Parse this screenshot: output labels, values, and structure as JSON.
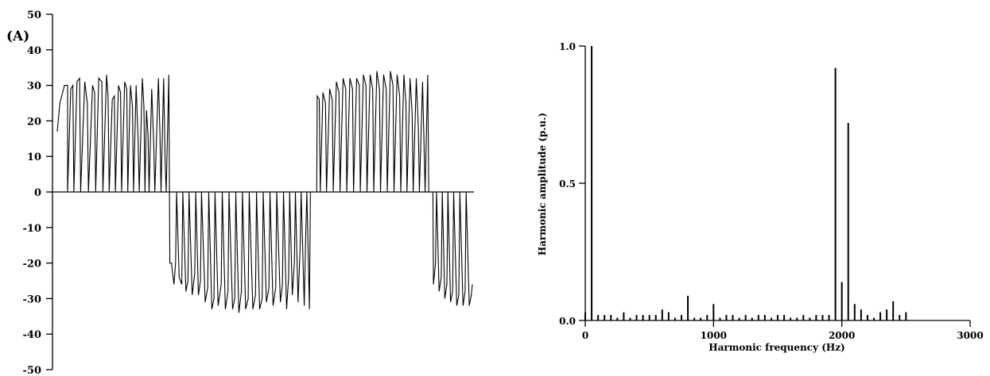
{
  "chart_data": [
    {
      "type": "line",
      "unit_label": "(A)",
      "ylim": [
        -50,
        50
      ],
      "yticks": [
        50,
        40,
        30,
        20,
        10,
        0,
        -10,
        -20,
        -30,
        -40,
        -50
      ],
      "ytick_labels": [
        "50",
        "40",
        "30",
        "20",
        "10",
        "0",
        "-10",
        "-20",
        "-30",
        "-40",
        "-50"
      ],
      "series": [
        {
          "values": [
            [
              0,
              17
            ],
            [
              0.05,
              25
            ],
            [
              0.14,
              30
            ],
            [
              0.2,
              30
            ],
            [
              0.2,
              0
            ],
            [
              0.26,
              29
            ],
            [
              0.3,
              30
            ],
            [
              0.32,
              0
            ],
            [
              0.38,
              31
            ],
            [
              0.43,
              32
            ],
            [
              0.45,
              0
            ],
            [
              0.53,
              31
            ],
            [
              0.58,
              25
            ],
            [
              0.6,
              0
            ],
            [
              0.68,
              30
            ],
            [
              0.72,
              28
            ],
            [
              0.74,
              0
            ],
            [
              0.8,
              32
            ],
            [
              0.86,
              31
            ],
            [
              0.88,
              0
            ],
            [
              0.95,
              33
            ],
            [
              0.98,
              27
            ],
            [
              1.0,
              0
            ],
            [
              1.06,
              26
            ],
            [
              1.1,
              27
            ],
            [
              1.12,
              0
            ],
            [
              1.18,
              30
            ],
            [
              1.22,
              28
            ],
            [
              1.24,
              0
            ],
            [
              1.3,
              31
            ],
            [
              1.34,
              29
            ],
            [
              1.36,
              0
            ],
            [
              1.41,
              30
            ],
            [
              1.45,
              24
            ],
            [
              1.47,
              0
            ],
            [
              1.52,
              30
            ],
            [
              1.56,
              14
            ],
            [
              1.58,
              0
            ],
            [
              1.64,
              32
            ],
            [
              1.67,
              24
            ],
            [
              1.69,
              0
            ],
            [
              1.72,
              23
            ],
            [
              1.75,
              16
            ],
            [
              1.77,
              0
            ],
            [
              1.82,
              29
            ],
            [
              1.86,
              13
            ],
            [
              1.88,
              0
            ],
            [
              1.95,
              32
            ],
            [
              1.98,
              16
            ],
            [
              2.0,
              0
            ],
            [
              2.05,
              32
            ],
            [
              2.08,
              8
            ],
            [
              2.1,
              0
            ],
            [
              2.15,
              33
            ],
            [
              2.17,
              -20
            ],
            [
              2.2,
              -20
            ],
            [
              2.25,
              -26
            ],
            [
              2.28,
              -20
            ],
            [
              2.3,
              0
            ],
            [
              2.35,
              -24
            ],
            [
              2.4,
              -26
            ],
            [
              2.42,
              0
            ],
            [
              2.48,
              -28
            ],
            [
              2.52,
              -25
            ],
            [
              2.54,
              0
            ],
            [
              2.6,
              -29
            ],
            [
              2.65,
              -23
            ],
            [
              2.67,
              0
            ],
            [
              2.72,
              -29
            ],
            [
              2.76,
              -25
            ],
            [
              2.78,
              0
            ],
            [
              2.85,
              -31
            ],
            [
              2.9,
              -27
            ],
            [
              2.92,
              0
            ],
            [
              2.98,
              -33
            ],
            [
              3.02,
              -30
            ],
            [
              3.04,
              0
            ],
            [
              3.1,
              -32
            ],
            [
              3.16,
              -26
            ],
            [
              3.18,
              0
            ],
            [
              3.24,
              -33
            ],
            [
              3.29,
              -28
            ],
            [
              3.31,
              0
            ],
            [
              3.38,
              -33
            ],
            [
              3.42,
              -30
            ],
            [
              3.44,
              0
            ],
            [
              3.5,
              -34
            ],
            [
              3.55,
              -28
            ],
            [
              3.57,
              0
            ],
            [
              3.63,
              -33
            ],
            [
              3.68,
              -30
            ],
            [
              3.7,
              0
            ],
            [
              3.77,
              -33
            ],
            [
              3.82,
              -29
            ],
            [
              3.84,
              0
            ],
            [
              3.9,
              -33
            ],
            [
              3.95,
              -30
            ],
            [
              3.97,
              0
            ],
            [
              4.03,
              -31
            ],
            [
              4.08,
              -27
            ],
            [
              4.1,
              0
            ],
            [
              4.16,
              -32
            ],
            [
              4.21,
              -27
            ],
            [
              4.23,
              0
            ],
            [
              4.3,
              -31
            ],
            [
              4.34,
              -26
            ],
            [
              4.36,
              0
            ],
            [
              4.42,
              -33
            ],
            [
              4.46,
              -24
            ],
            [
              4.48,
              0
            ],
            [
              4.53,
              -29
            ],
            [
              4.57,
              -20
            ],
            [
              4.59,
              0
            ],
            [
              4.64,
              -31
            ],
            [
              4.68,
              -16
            ],
            [
              4.7,
              0
            ],
            [
              4.76,
              -32
            ],
            [
              4.79,
              -12
            ],
            [
              4.81,
              0
            ],
            [
              4.86,
              -33
            ],
            [
              4.88,
              0
            ],
            [
              5.0,
              0
            ],
            [
              5.01,
              27
            ],
            [
              5.05,
              26
            ],
            [
              5.07,
              0
            ],
            [
              5.12,
              28
            ],
            [
              5.17,
              25
            ],
            [
              5.19,
              0
            ],
            [
              5.25,
              29
            ],
            [
              5.3,
              26
            ],
            [
              5.32,
              0
            ],
            [
              5.38,
              31
            ],
            [
              5.43,
              28
            ],
            [
              5.45,
              0
            ],
            [
              5.51,
              32
            ],
            [
              5.56,
              29
            ],
            [
              5.58,
              0
            ],
            [
              5.64,
              32
            ],
            [
              5.69,
              29
            ],
            [
              5.71,
              0
            ],
            [
              5.77,
              32
            ],
            [
              5.82,
              30
            ],
            [
              5.84,
              0
            ],
            [
              5.9,
              33
            ],
            [
              5.95,
              30
            ],
            [
              5.97,
              0
            ],
            [
              6.03,
              33
            ],
            [
              6.08,
              29
            ],
            [
              6.1,
              0
            ],
            [
              6.16,
              34
            ],
            [
              6.21,
              29
            ],
            [
              6.23,
              0
            ],
            [
              6.29,
              33
            ],
            [
              6.34,
              29
            ],
            [
              6.36,
              0
            ],
            [
              6.42,
              34
            ],
            [
              6.47,
              30
            ],
            [
              6.49,
              0
            ],
            [
              6.55,
              33
            ],
            [
              6.6,
              27
            ],
            [
              6.62,
              0
            ],
            [
              6.68,
              33
            ],
            [
              6.72,
              25
            ],
            [
              6.74,
              0
            ],
            [
              6.8,
              32
            ],
            [
              6.84,
              22
            ],
            [
              6.86,
              0
            ],
            [
              6.92,
              32
            ],
            [
              6.96,
              18
            ],
            [
              6.98,
              0
            ],
            [
              7.04,
              31
            ],
            [
              7.07,
              13
            ],
            [
              7.09,
              0
            ],
            [
              7.14,
              33
            ],
            [
              7.16,
              0
            ],
            [
              7.24,
              0
            ],
            [
              7.25,
              -26
            ],
            [
              7.29,
              -20
            ],
            [
              7.31,
              0
            ],
            [
              7.36,
              -28
            ],
            [
              7.4,
              -24
            ],
            [
              7.42,
              0
            ],
            [
              7.47,
              -30
            ],
            [
              7.51,
              -26
            ],
            [
              7.53,
              0
            ],
            [
              7.58,
              -31
            ],
            [
              7.62,
              -28
            ],
            [
              7.64,
              0
            ],
            [
              7.7,
              -32
            ],
            [
              7.74,
              -29
            ],
            [
              7.76,
              0
            ],
            [
              7.82,
              -32
            ],
            [
              7.86,
              -28
            ],
            [
              7.88,
              0
            ],
            [
              7.94,
              -32
            ],
            [
              7.98,
              -29
            ],
            [
              8.0,
              -26
            ]
          ]
        }
      ]
    },
    {
      "type": "bar",
      "xlabel": "Harmonic frequency (Hz)",
      "ylabel": "Harmonic amplitude (p.u.)",
      "xlim": [
        0,
        3000
      ],
      "ylim": [
        0,
        1.0
      ],
      "xticks": [
        0,
        1000,
        2000,
        3000
      ],
      "xtick_labels": [
        "0",
        "1000",
        "2000",
        "3000"
      ],
      "yticks": [
        0,
        0.5,
        1.0
      ],
      "ytick_labels": [
        "0.0",
        "0.5",
        "1.0"
      ],
      "x": [
        0,
        50,
        100,
        150,
        200,
        250,
        300,
        350,
        400,
        450,
        500,
        550,
        600,
        650,
        700,
        750,
        800,
        850,
        900,
        950,
        1000,
        1050,
        1100,
        1150,
        1200,
        1250,
        1300,
        1350,
        1400,
        1450,
        1500,
        1550,
        1600,
        1650,
        1700,
        1750,
        1800,
        1850,
        1900,
        1950,
        2000,
        2050,
        2100,
        2150,
        2200,
        2250,
        2300,
        2350,
        2400,
        2450,
        2500
      ],
      "values": [
        0.03,
        1.0,
        0.02,
        0.02,
        0.02,
        0.01,
        0.03,
        0.01,
        0.02,
        0.02,
        0.02,
        0.02,
        0.04,
        0.03,
        0.01,
        0.02,
        0.09,
        0.01,
        0.01,
        0.02,
        0.06,
        0.01,
        0.02,
        0.02,
        0.01,
        0.02,
        0.01,
        0.02,
        0.02,
        0.01,
        0.02,
        0.02,
        0.01,
        0.01,
        0.02,
        0.01,
        0.02,
        0.02,
        0.02,
        0.92,
        0.14,
        0.72,
        0.06,
        0.04,
        0.02,
        0.01,
        0.03,
        0.04,
        0.07,
        0.02,
        0.03
      ]
    }
  ]
}
